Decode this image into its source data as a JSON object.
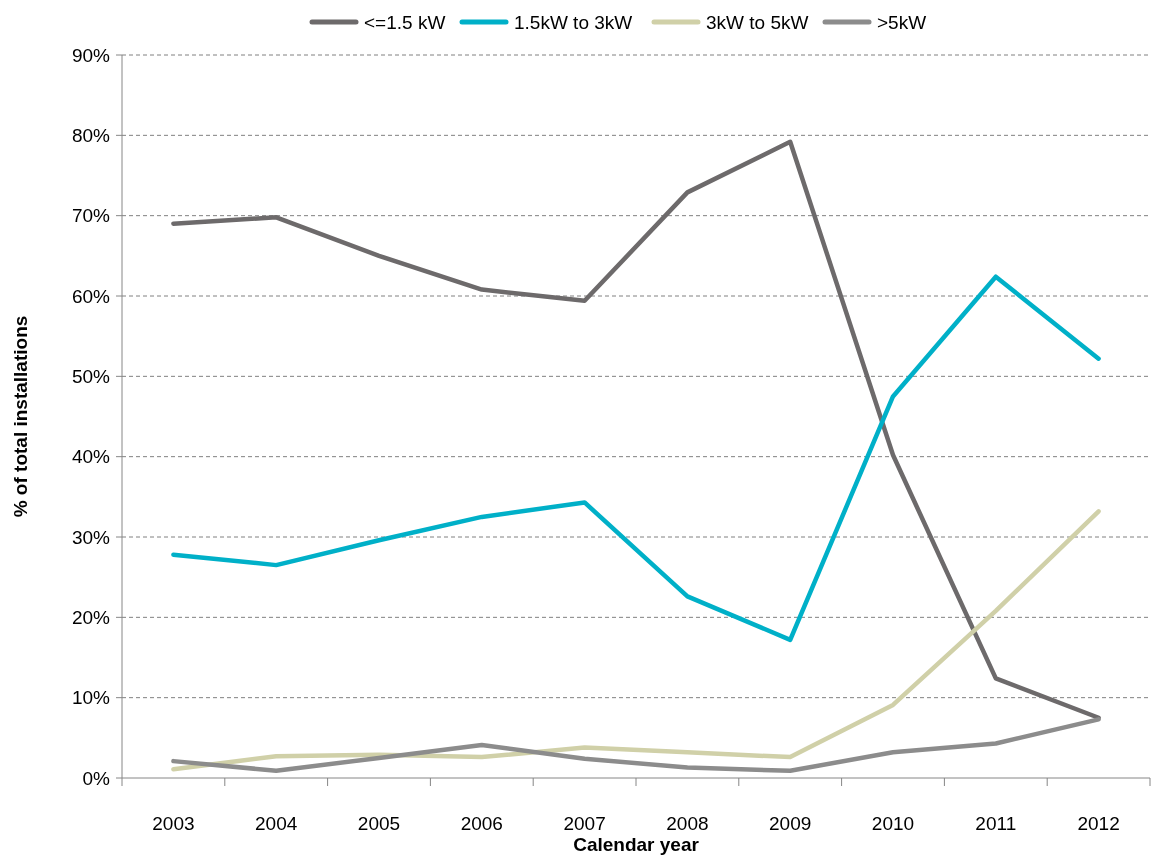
{
  "chart_data": {
    "type": "line",
    "xlabel": "Calendar year",
    "ylabel": "% of total installations",
    "categories": [
      "2003",
      "2004",
      "2005",
      "2006",
      "2007",
      "2008",
      "2009",
      "2010",
      "2011",
      "2012"
    ],
    "series": [
      {
        "name": "<=1.5 kW",
        "color": "#6d6a6b",
        "values": [
          69.0,
          69.8,
          65.0,
          60.8,
          59.4,
          72.9,
          79.2,
          40.2,
          12.4,
          7.5
        ]
      },
      {
        "name": "1.5kW to 3kW",
        "color": "#00b0c8",
        "values": [
          27.8,
          26.5,
          29.6,
          32.5,
          34.3,
          22.6,
          17.2,
          47.5,
          62.4,
          52.2
        ]
      },
      {
        "name": "3kW to 5kW",
        "color": "#d0d0a8",
        "values": [
          1.1,
          2.7,
          2.9,
          2.6,
          3.8,
          3.2,
          2.6,
          9.1,
          20.8,
          33.2
        ]
      },
      {
        "name": ">5kW",
        "color": "#8c8c8c",
        "values": [
          2.1,
          0.9,
          2.5,
          4.1,
          2.4,
          1.3,
          0.9,
          3.2,
          4.3,
          7.3
        ]
      }
    ],
    "ylim": [
      0,
      90
    ],
    "yticks": [
      {
        "value": 0,
        "label": "0%"
      },
      {
        "value": 10,
        "label": "10%"
      },
      {
        "value": 20,
        "label": "20%"
      },
      {
        "value": 30,
        "label": "30%"
      },
      {
        "value": 40,
        "label": "40%"
      },
      {
        "value": 50,
        "label": "50%"
      },
      {
        "value": 60,
        "label": "60%"
      },
      {
        "value": 70,
        "label": "70%"
      },
      {
        "value": 80,
        "label": "80%"
      },
      {
        "value": 90,
        "label": "90%"
      }
    ],
    "grid": "y",
    "legend": "top",
    "marker": "none",
    "line_style": "solid"
  }
}
